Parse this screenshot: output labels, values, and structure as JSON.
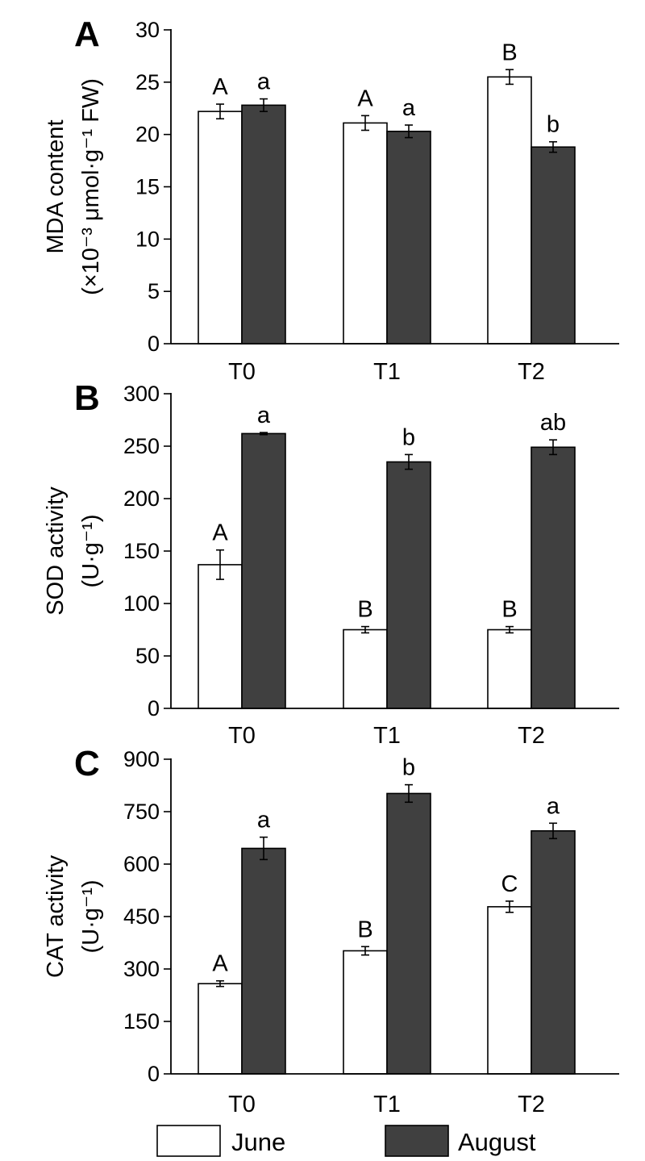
{
  "chart_data": [
    {
      "type": "bar",
      "panel": "A",
      "ylabel_line1": "MDA content",
      "ylabel_line2": "(×10⁻³ μmol·g⁻¹ FW)",
      "categories": [
        "T0",
        "T1",
        "T2"
      ],
      "ylim": [
        0,
        30
      ],
      "yticks": [
        "0",
        "5",
        "10",
        "15",
        "20",
        "25",
        "30"
      ],
      "series": [
        {
          "name": "June",
          "values": [
            22.2,
            21.1,
            25.5
          ],
          "errors": [
            0.7,
            0.7,
            0.7
          ],
          "labels": [
            "A",
            "A",
            "B"
          ]
        },
        {
          "name": "August",
          "values": [
            22.8,
            20.3,
            18.8
          ],
          "errors": [
            0.6,
            0.6,
            0.5
          ],
          "labels": [
            "a",
            "a",
            "b"
          ]
        }
      ]
    },
    {
      "type": "bar",
      "panel": "B",
      "ylabel_line1": "SOD activity",
      "ylabel_line2": "(U·g⁻¹)",
      "categories": [
        "T0",
        "T1",
        "T2"
      ],
      "ylim": [
        0,
        300
      ],
      "yticks": [
        "0",
        "50",
        "100",
        "150",
        "200",
        "250",
        "300"
      ],
      "series": [
        {
          "name": "June",
          "values": [
            137,
            75,
            75
          ],
          "errors": [
            14,
            3,
            3
          ],
          "labels": [
            "A",
            "B",
            "B"
          ]
        },
        {
          "name": "August",
          "values": [
            262,
            235,
            249
          ],
          "errors": [
            1,
            7,
            7
          ],
          "labels": [
            "a",
            "b",
            "ab"
          ]
        }
      ]
    },
    {
      "type": "bar",
      "panel": "C",
      "ylabel_line1": "CAT activity",
      "ylabel_line2": "(U·g⁻¹)",
      "categories": [
        "T0",
        "T1",
        "T2"
      ],
      "ylim": [
        0,
        900
      ],
      "yticks": [
        "0",
        "150",
        "300",
        "450",
        "600",
        "750",
        "900"
      ],
      "series": [
        {
          "name": "June",
          "values": [
            258,
            352,
            478
          ],
          "errors": [
            8,
            12,
            16
          ],
          "labels": [
            "A",
            "B",
            "C"
          ]
        },
        {
          "name": "August",
          "values": [
            645,
            802,
            695
          ],
          "errors": [
            32,
            25,
            22
          ],
          "labels": [
            "a",
            "b",
            "a"
          ]
        }
      ]
    }
  ],
  "legend": {
    "items": [
      {
        "label": "June",
        "color": "#ffffff"
      },
      {
        "label": "August",
        "color": "#404040"
      }
    ]
  },
  "colors": {
    "june": "#ffffff",
    "august": "#404040",
    "axis": "#000000"
  }
}
